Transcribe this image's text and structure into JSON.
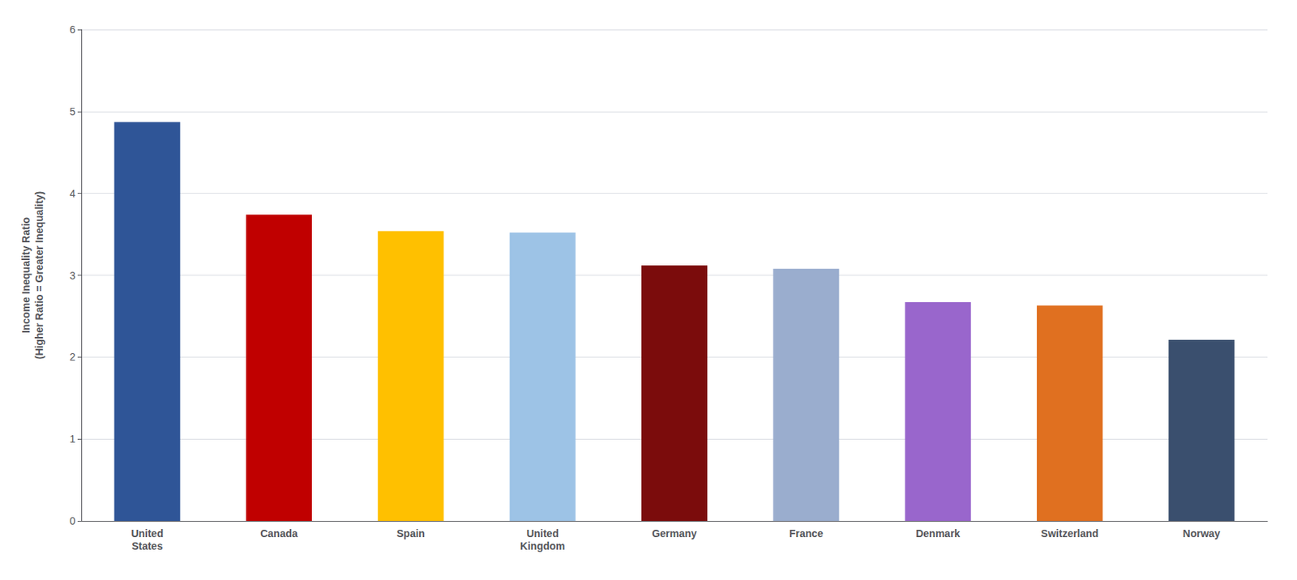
{
  "chart_data": {
    "type": "bar",
    "categories": [
      "United\nStates",
      "Canada",
      "Spain",
      "United\nKingdom",
      "Germany",
      "France",
      "Denmark",
      "Switzerland",
      "Norway"
    ],
    "values": [
      4.87,
      3.74,
      3.54,
      3.52,
      3.12,
      3.08,
      2.67,
      2.63,
      2.21
    ],
    "colors": [
      "#2f5597",
      "#c00000",
      "#ffc000",
      "#9dc3e6",
      "#7b0c0c",
      "#9aadce",
      "#9966cc",
      "#e07020",
      "#3a4f6e"
    ],
    "ylabel": "Income Inequality Ratio\n(Higher Ratio = Greater Inequality)",
    "ylim": [
      0,
      6
    ],
    "yticks": [
      0,
      1,
      2,
      3,
      4,
      5,
      6
    ],
    "grid": true
  }
}
